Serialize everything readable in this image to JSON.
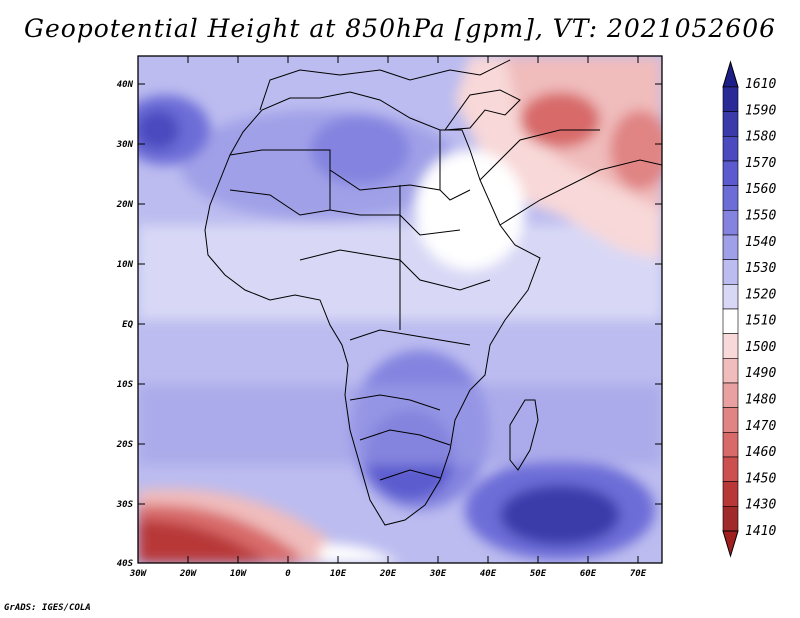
{
  "title": "Geopotential Height at 850hPa [gpm], VT: 2021052606",
  "credit": "GrADS: IGES/COLA",
  "lat_labels": [
    "40N",
    "30N",
    "20N",
    "10N",
    "EQ",
    "10S",
    "20S",
    "30S",
    "40S"
  ],
  "lon_labels": [
    "30W",
    "20W",
    "10W",
    "0",
    "10E",
    "20E",
    "30E",
    "40E",
    "50E",
    "60E",
    "70E"
  ],
  "colorbar": {
    "levels": [
      "1610",
      "1590",
      "1580",
      "1570",
      "1560",
      "1550",
      "1540",
      "1530",
      "1520",
      "1510",
      "1500",
      "1490",
      "1480",
      "1470",
      "1460",
      "1450",
      "1430",
      "1410"
    ],
    "colors": [
      "#2a2a96",
      "#3a3aaa",
      "#4b4bbf",
      "#5b5bcf",
      "#6d6dd8",
      "#8484e0",
      "#a0a0e8",
      "#bcbcf0",
      "#d8d8f6",
      "#ffffff",
      "#f8d8d8",
      "#f0bcbc",
      "#e8a0a0",
      "#e08484",
      "#d86a6a",
      "#cc5050",
      "#b83838",
      "#a02a2a"
    ],
    "top_arrow_color": "#1e1e88",
    "bottom_arrow_color": "#a02020"
  },
  "chart_data": {
    "type": "heatmap",
    "title": "Geopotential Height at 850hPa [gpm], VT: 2021052606",
    "variable": "Geopotential Height",
    "units": "gpm",
    "pressure_level": "850hPa",
    "valid_time": "2021052606",
    "lon_range": [
      -30,
      75
    ],
    "lat_range": [
      -40,
      45
    ],
    "contour_levels": [
      1410,
      1430,
      1450,
      1460,
      1470,
      1480,
      1490,
      1500,
      1510,
      1520,
      1530,
      1540,
      1550,
      1560,
      1570,
      1580,
      1590,
      1610
    ]
  }
}
